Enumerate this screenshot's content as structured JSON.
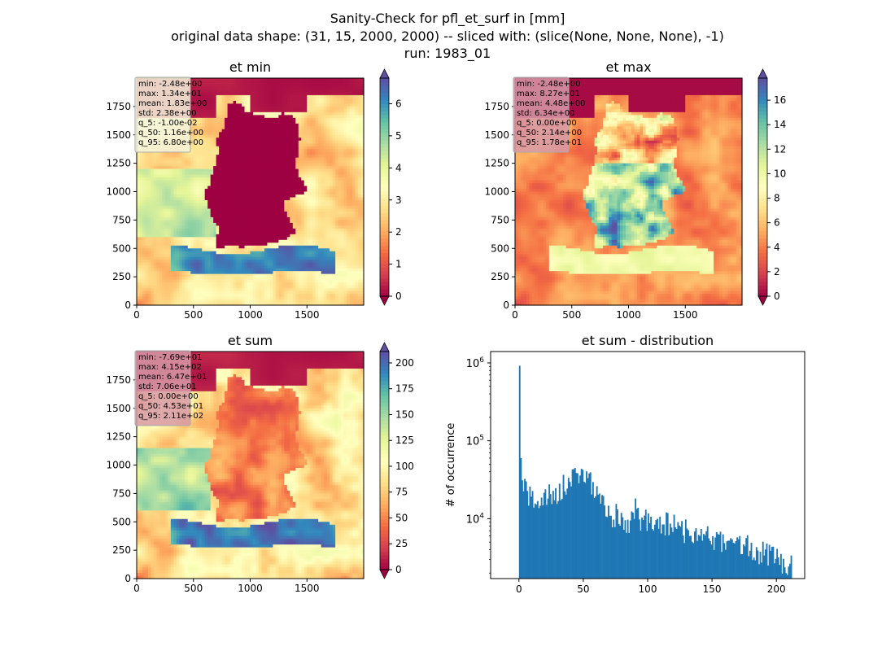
{
  "figure": {
    "title_lines": [
      "Sanity-Check for pfl_et_surf in [mm]",
      "original data shape: (31, 15, 2000, 2000) -- sliced with: (slice(None, None, None), -1)",
      "run: 1983_01"
    ]
  },
  "colors": {
    "spectral": [
      "#9e0142",
      "#d53e4f",
      "#f46d43",
      "#fdae61",
      "#fee08b",
      "#ffffbf",
      "#e6f598",
      "#abdda4",
      "#66c2a5",
      "#3288bd",
      "#5e4fa2"
    ],
    "hist_bar": "#1f77b4",
    "stats_box_light": "#f5f5dc",
    "stats_box_pink": "#d79aa8"
  },
  "chart_data": [
    {
      "type": "heatmap",
      "title": "et min",
      "xticks": [
        "0",
        "500",
        "1000",
        "1500"
      ],
      "yticks": [
        "0",
        "250",
        "500",
        "750",
        "1000",
        "1250",
        "1500",
        "1750"
      ],
      "xlim": [
        0,
        2000
      ],
      "ylim": [
        0,
        2000
      ],
      "colorbar": {
        "range": [
          0,
          6.8
        ],
        "ticks": [
          "0",
          "1",
          "2",
          "3",
          "4",
          "5",
          "6"
        ],
        "extend": "both"
      },
      "stats": [
        "min: -2.48e+00",
        "max: 1.34e+01",
        "mean: 1.83e+00",
        "std: 2.38e+00",
        "q_5: -1.00e-02",
        "q_50: 1.16e+00",
        "q_95: 6.80e+00"
      ]
    },
    {
      "type": "heatmap",
      "title": "et max",
      "xticks": [
        "0",
        "500",
        "1000",
        "1500"
      ],
      "yticks": [
        "0",
        "250",
        "500",
        "750",
        "1000",
        "1250",
        "1500",
        "1750"
      ],
      "xlim": [
        0,
        2000
      ],
      "ylim": [
        0,
        2000
      ],
      "colorbar": {
        "range": [
          0,
          17.8
        ],
        "ticks": [
          "0",
          "2",
          "4",
          "6",
          "8",
          "10",
          "12",
          "14",
          "16"
        ],
        "extend": "both"
      },
      "stats": [
        "min: -2.48e+00",
        "max: 8.27e+01",
        "mean: 4.48e+00",
        "std: 6.34e+00",
        "q_5: 0.00e+00",
        "q_50: 2.14e+00",
        "q_95: 1.78e+01"
      ]
    },
    {
      "type": "heatmap",
      "title": "et sum",
      "xticks": [
        "0",
        "500",
        "1000",
        "1500"
      ],
      "yticks": [
        "0",
        "250",
        "500",
        "750",
        "1000",
        "1250",
        "1500",
        "1750"
      ],
      "xlim": [
        0,
        2000
      ],
      "ylim": [
        0,
        2000
      ],
      "colorbar": {
        "range": [
          0,
          211
        ],
        "ticks": [
          "0",
          "25",
          "50",
          "75",
          "100",
          "125",
          "150",
          "175",
          "200"
        ],
        "extend": "both"
      },
      "stats": [
        "min: -7.69e+01",
        "max: 4.15e+02",
        "mean: 6.47e+01",
        "std: 7.06e+01",
        "q_5: 0.00e+00",
        "q_50: 4.53e+01",
        "q_95: 2.11e+02"
      ]
    },
    {
      "type": "bar",
      "title": "et sum - distribution",
      "xlabel": "",
      "ylabel": "# of occurrence",
      "yscale": "log",
      "xlim": [
        -22,
        222
      ],
      "ylim": [
        1700,
        1400000
      ],
      "xticks": [
        "0",
        "50",
        "100",
        "150",
        "200"
      ],
      "yticks": [
        "10^4",
        "10^5",
        "10^6"
      ],
      "bin_width": 1.0,
      "anchors": [
        [
          0,
          920000
        ],
        [
          1,
          60000
        ],
        [
          2,
          28000
        ],
        [
          4,
          22000
        ],
        [
          6,
          19500
        ],
        [
          10,
          17500
        ],
        [
          15,
          17000
        ],
        [
          20,
          18000
        ],
        [
          25,
          19500
        ],
        [
          30,
          22000
        ],
        [
          35,
          26000
        ],
        [
          40,
          31000
        ],
        [
          45,
          36000
        ],
        [
          50,
          38000
        ],
        [
          53,
          34000
        ],
        [
          56,
          27000
        ],
        [
          60,
          20000
        ],
        [
          65,
          15000
        ],
        [
          70,
          12000
        ],
        [
          75,
          10500
        ],
        [
          80,
          9500
        ],
        [
          85,
          9000
        ],
        [
          88,
          8500
        ],
        [
          90,
          14500
        ],
        [
          92,
          9500
        ],
        [
          100,
          9000
        ],
        [
          110,
          8500
        ],
        [
          120,
          8000
        ],
        [
          130,
          7000
        ],
        [
          140,
          6000
        ],
        [
          150,
          5500
        ],
        [
          160,
          5000
        ],
        [
          170,
          4500
        ],
        [
          180,
          4000
        ],
        [
          190,
          3500
        ],
        [
          200,
          3000
        ],
        [
          205,
          2700
        ],
        [
          211,
          2400
        ]
      ],
      "noise": 0.17
    }
  ]
}
